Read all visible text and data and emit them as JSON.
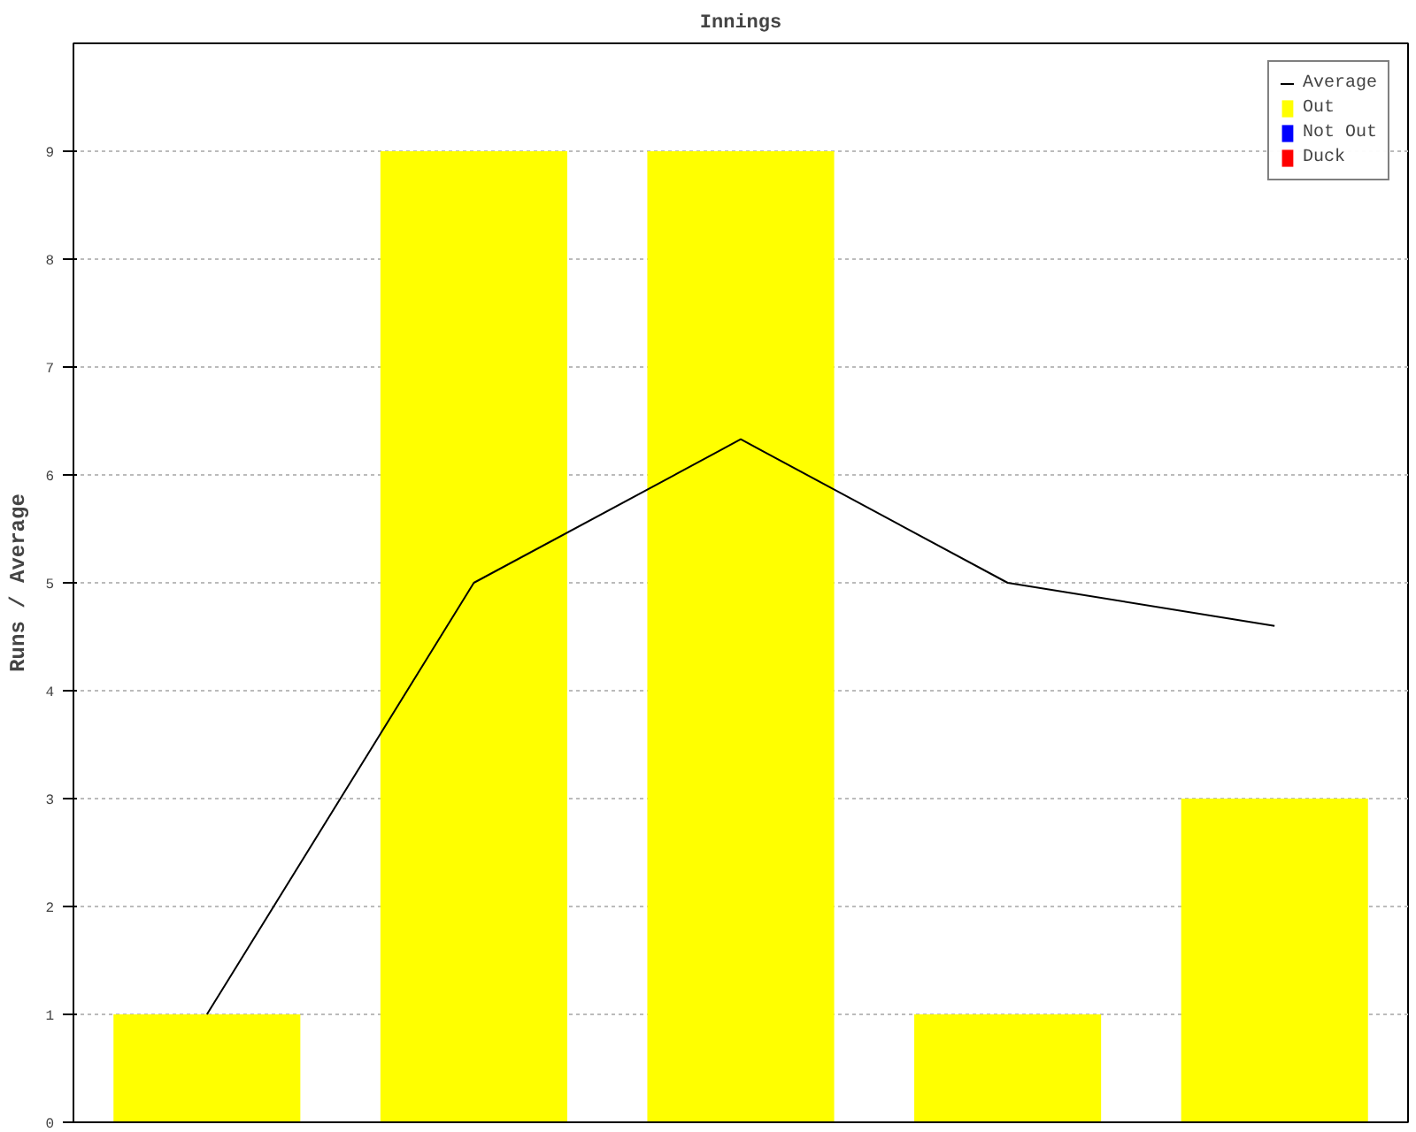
{
  "chart_data": {
    "type": "bar",
    "title": "Innings",
    "ylabel": "Runs / Average",
    "categories": [
      null,
      null,
      null,
      null,
      null
    ],
    "series": [
      {
        "name": "Average",
        "type": "line",
        "color": "#000000",
        "values": [
          1,
          5,
          6.33,
          5,
          4.6
        ]
      },
      {
        "name": "Out",
        "color": "#ffff00",
        "values": [
          1,
          9,
          9,
          1,
          3
        ]
      },
      {
        "name": "Not Out",
        "color": "#0000ff",
        "values": [
          null,
          null,
          null,
          null,
          null
        ]
      },
      {
        "name": "Duck",
        "color": "#ff0000",
        "values": [
          null,
          null,
          null,
          null,
          null
        ]
      }
    ],
    "ylim": [
      0,
      10
    ],
    "yticks": [
      0,
      1,
      2,
      3,
      4,
      5,
      6,
      7,
      8,
      9
    ],
    "grid": "y",
    "legend": "top right",
    "tick_labels": "y",
    "marker": "none",
    "line_style": "solid"
  }
}
